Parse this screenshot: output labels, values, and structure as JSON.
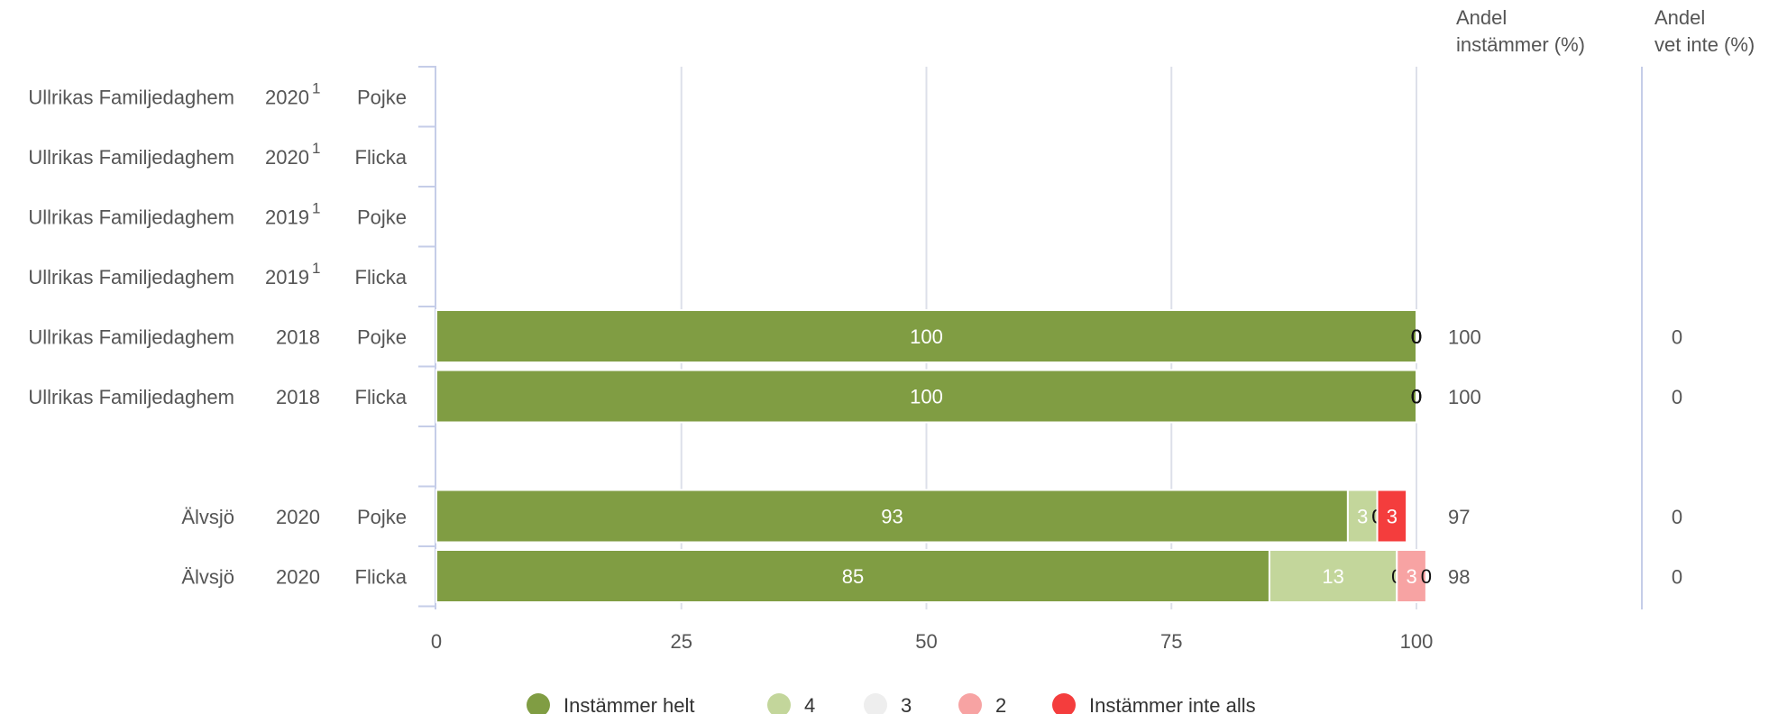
{
  "colors": {
    "Instämmer helt": "#809d43",
    "4": "#c3d69b",
    "3": "#eeeeee",
    "2": "#f7a3a3",
    "Instämmer inte alls": "#f43d3d",
    "text_main": "#555555",
    "grid": "#dde0ea",
    "axis": "#c5cde8"
  },
  "column_headers": {
    "instammer": "Andel\ninstämmer (%)",
    "vet_inte": "Andel\nvet inte (%)"
  },
  "chart_data": {
    "type": "bar",
    "orientation": "horizontal",
    "stacked": true,
    "title": "",
    "xlabel": "",
    "ylabel": "",
    "xlim": [
      0,
      100
    ],
    "x_ticks": [
      0,
      25,
      50,
      75,
      100
    ],
    "grid": true,
    "legend_position": "bottom",
    "series": [
      {
        "name": "Instämmer helt",
        "values": [
          null,
          null,
          null,
          null,
          100,
          100,
          null,
          93,
          85
        ]
      },
      {
        "name": "4",
        "values": [
          null,
          null,
          null,
          null,
          0,
          0,
          null,
          3,
          13
        ]
      },
      {
        "name": "3",
        "values": [
          null,
          null,
          null,
          null,
          0,
          0,
          null,
          0,
          0
        ]
      },
      {
        "name": "2",
        "values": [
          null,
          null,
          null,
          null,
          0,
          0,
          null,
          0,
          3
        ]
      },
      {
        "name": "Instämmer inte alls",
        "values": [
          null,
          null,
          null,
          null,
          0,
          0,
          null,
          3,
          0
        ]
      }
    ],
    "rows": [
      {
        "unit": "Ullrikas Familjedaghem",
        "year": "2020",
        "footnote": "1",
        "gender": "Pojke",
        "andel_instammer": "",
        "andel_vet_inte": ""
      },
      {
        "unit": "Ullrikas Familjedaghem",
        "year": "2020",
        "footnote": "1",
        "gender": "Flicka",
        "andel_instammer": "",
        "andel_vet_inte": ""
      },
      {
        "unit": "Ullrikas Familjedaghem",
        "year": "2019",
        "footnote": "1",
        "gender": "Pojke",
        "andel_instammer": "",
        "andel_vet_inte": ""
      },
      {
        "unit": "Ullrikas Familjedaghem",
        "year": "2019",
        "footnote": "1",
        "gender": "Flicka",
        "andel_instammer": "",
        "andel_vet_inte": ""
      },
      {
        "unit": "Ullrikas Familjedaghem",
        "year": "2018",
        "footnote": "",
        "gender": "Pojke",
        "andel_instammer": "100",
        "andel_vet_inte": "0"
      },
      {
        "unit": "Ullrikas Familjedaghem",
        "year": "2018",
        "footnote": "",
        "gender": "Flicka",
        "andel_instammer": "100",
        "andel_vet_inte": "0"
      },
      {
        "unit": "",
        "year": "",
        "footnote": "",
        "gender": "",
        "andel_instammer": "",
        "andel_vet_inte": ""
      },
      {
        "unit": "Älvsjö",
        "year": "2020",
        "footnote": "",
        "gender": "Pojke",
        "andel_instammer": "97",
        "andel_vet_inte": "0"
      },
      {
        "unit": "Älvsjö",
        "year": "2020",
        "footnote": "",
        "gender": "Flicka",
        "andel_instammer": "98",
        "andel_vet_inte": "0"
      }
    ]
  }
}
